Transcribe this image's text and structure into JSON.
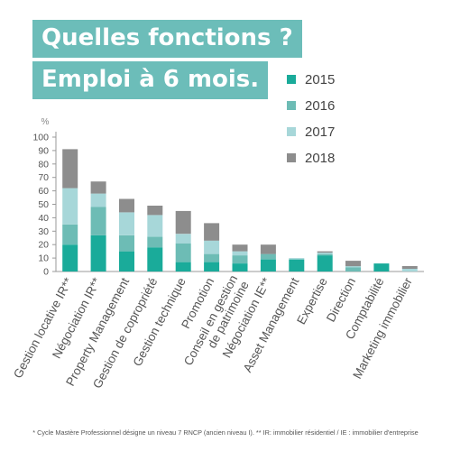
{
  "title": {
    "line1": "Quelles fonctions ?",
    "line2": "Emploi à 6 mois."
  },
  "colors": {
    "title_band": "#6cbdb9",
    "axis": "#999999",
    "text": "#555555"
  },
  "chart_data": {
    "type": "bar",
    "stacked": true,
    "ylabel": "%",
    "ylim": [
      0,
      100
    ],
    "yticks": [
      0,
      10,
      20,
      30,
      40,
      50,
      60,
      70,
      80,
      90,
      100
    ],
    "grid": false,
    "legend_position": "top-right",
    "categories": [
      "Gestion locative IR**",
      "Négociation IR**",
      "Property Management",
      "Gestion de copropriété",
      "Gestion technique",
      "Promotion",
      "Conseil en gestion de patrimoine",
      "Négociation IE**",
      "Asset Management",
      "Expertise",
      "Direction",
      "Comptabilité",
      "Marketing immobilier"
    ],
    "series": [
      {
        "name": "2015",
        "color": "#1aab9a",
        "values": [
          20,
          27,
          15,
          18,
          7,
          7,
          6,
          9,
          9,
          12,
          0,
          6,
          0
        ]
      },
      {
        "name": "2016",
        "color": "#6dbcb5",
        "values": [
          15,
          21,
          12,
          8,
          14,
          6,
          6,
          4,
          0,
          1,
          3,
          0,
          0
        ]
      },
      {
        "name": "2017",
        "color": "#a7d7d9",
        "values": [
          27,
          10,
          17,
          16,
          7,
          10,
          3,
          0,
          1,
          1,
          1,
          0,
          2
        ]
      },
      {
        "name": "2018",
        "color": "#8d8d8d",
        "values": [
          29,
          9,
          10,
          7,
          17,
          13,
          5,
          7,
          0,
          1,
          4,
          0,
          2
        ]
      }
    ]
  },
  "footnote": "* Cycle Mastère Professionnel désigne un niveau 7 RNCP (ancien niveau I).  ** IR: immobilier résidentiel / IE : immobilier d'entreprise"
}
